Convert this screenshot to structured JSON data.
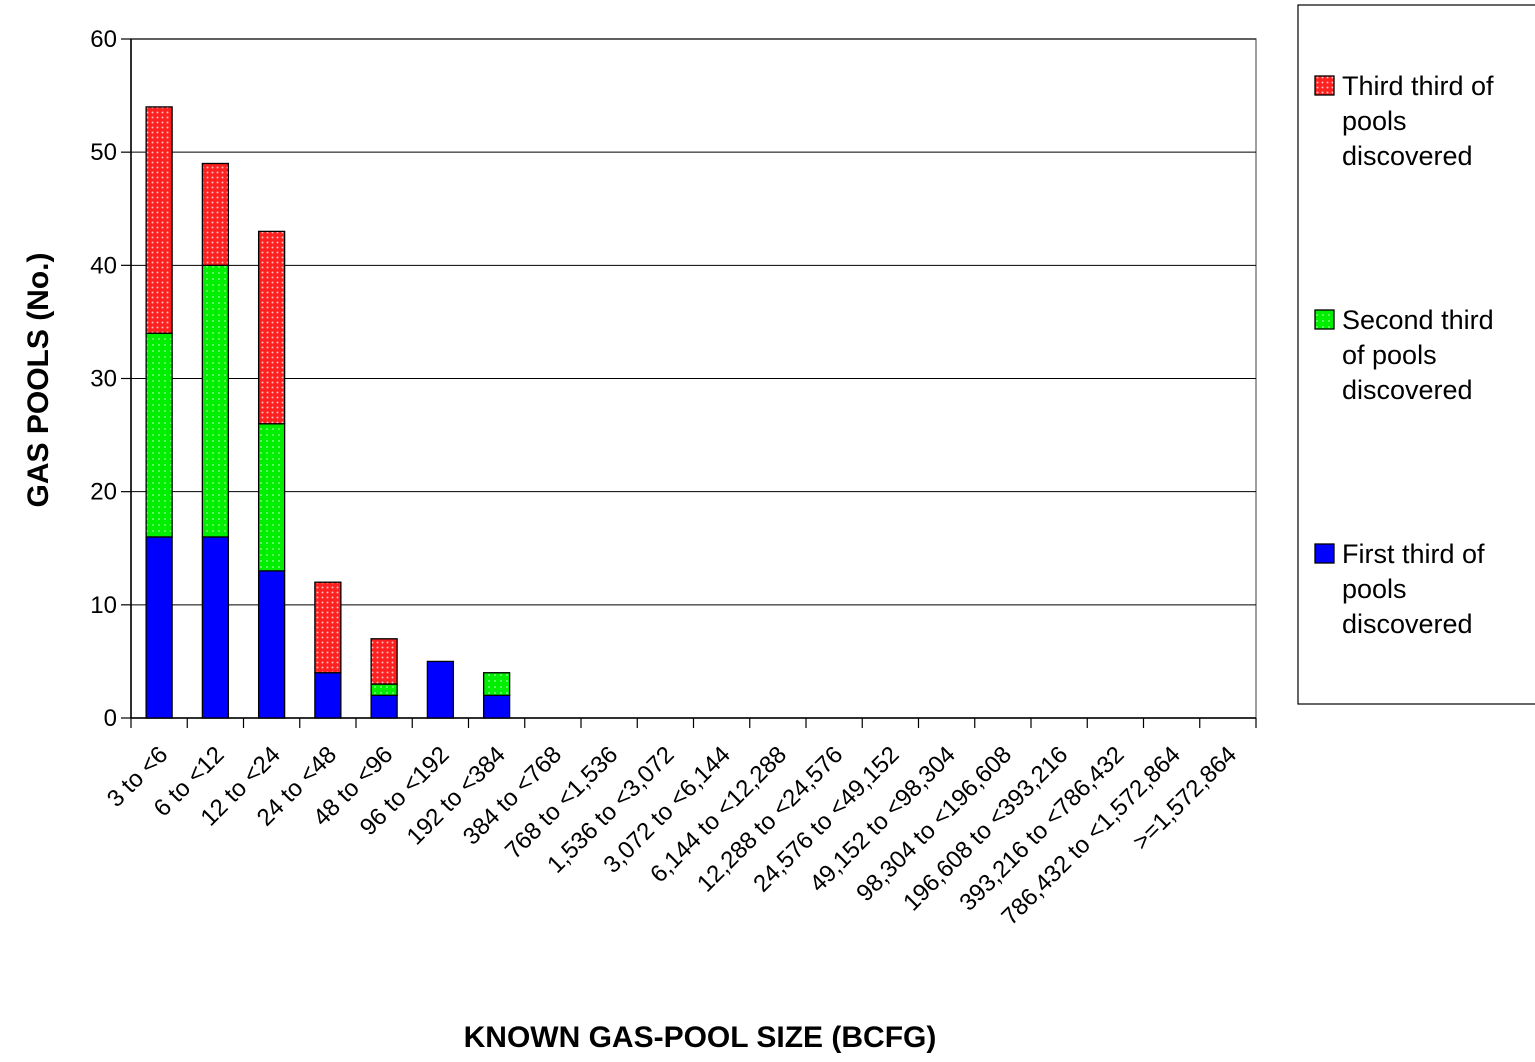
{
  "chart_data": {
    "type": "bar",
    "stacked": true,
    "xlabel": "KNOWN GAS-POOL SIZE (BCFG)",
    "ylabel": "GAS POOLS (No.)",
    "ylim": [
      0,
      60
    ],
    "yticks": [
      0,
      10,
      20,
      30,
      40,
      50,
      60
    ],
    "grid": true,
    "legend_position": "right",
    "categories": [
      "3 to <6",
      "6 to <12",
      "12 to <24",
      "24 to <48",
      "48 to <96",
      "96 to <192",
      "192 to <384",
      "384 to <768",
      "768 to <1,536",
      "1,536 to <3,072",
      "3,072 to <6,144",
      "6,144 to <12,288",
      "12,288 to <24,576",
      "24,576 to <49,152",
      "49,152 to <98,304",
      "98,304 to <196,608",
      "196,608 to <393,216",
      "393,216 to <786,432",
      "786,432 to <1,572,864",
      ">=1,572,864"
    ],
    "series": [
      {
        "name": "First third of pools discovered",
        "color": "#0000ff",
        "pattern": "solid",
        "values": [
          16,
          16,
          13,
          4,
          2,
          5,
          2,
          0,
          0,
          0,
          0,
          0,
          0,
          0,
          0,
          0,
          0,
          0,
          0,
          0
        ]
      },
      {
        "name": "Second third of pools discovered",
        "color": "#00ee00",
        "pattern": "dotted",
        "values": [
          18,
          24,
          13,
          0,
          1,
          0,
          2,
          0,
          0,
          0,
          0,
          0,
          0,
          0,
          0,
          0,
          0,
          0,
          0,
          0
        ]
      },
      {
        "name": "Third third of pools discovered",
        "color": "#ff2a2a",
        "pattern": "dotted",
        "values": [
          20,
          9,
          17,
          8,
          4,
          0,
          0,
          0,
          0,
          0,
          0,
          0,
          0,
          0,
          0,
          0,
          0,
          0,
          0,
          0
        ]
      }
    ],
    "legend_order": [
      2,
      1,
      0
    ],
    "legend_lines": [
      [
        "Third third of",
        "pools",
        "discovered"
      ],
      [
        "Second third",
        "of pools",
        "discovered"
      ],
      [
        "First third of",
        "pools",
        "discovered"
      ]
    ]
  }
}
